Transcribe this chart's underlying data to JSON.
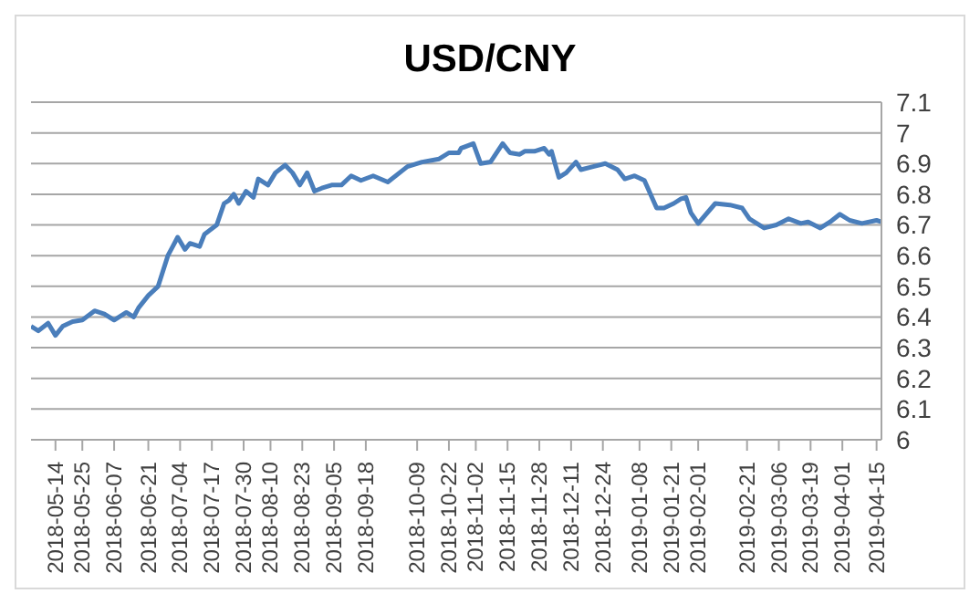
{
  "chart_data": {
    "type": "line",
    "title": "USD/CNY",
    "x": [
      "2018-05-04",
      "2018-05-07",
      "2018-05-11",
      "2018-05-14",
      "2018-05-17",
      "2018-05-21",
      "2018-05-25",
      "2018-05-30",
      "2018-06-03",
      "2018-06-07",
      "2018-06-12",
      "2018-06-15",
      "2018-06-17",
      "2018-06-21",
      "2018-06-25",
      "2018-06-29",
      "2018-07-01",
      "2018-07-03",
      "2018-07-06",
      "2018-07-08",
      "2018-07-12",
      "2018-07-14",
      "2018-07-19",
      "2018-07-22",
      "2018-07-24",
      "2018-07-26",
      "2018-07-28",
      "2018-07-31",
      "2018-08-03",
      "2018-08-05",
      "2018-08-09",
      "2018-08-12",
      "2018-08-16",
      "2018-08-19",
      "2018-08-22",
      "2018-08-25",
      "2018-08-28",
      "2018-08-31",
      "2018-09-04",
      "2018-09-08",
      "2018-09-12",
      "2018-09-16",
      "2018-09-21",
      "2018-09-27",
      "2018-10-05",
      "2018-10-11",
      "2018-10-18",
      "2018-10-22",
      "2018-10-26",
      "2018-10-27",
      "2018-11-01",
      "2018-11-04",
      "2018-11-08",
      "2018-11-13",
      "2018-11-16",
      "2018-11-20",
      "2018-11-22",
      "2018-11-26",
      "2018-11-30",
      "2018-12-02",
      "2018-12-03",
      "2018-12-06",
      "2018-12-09",
      "2018-12-13",
      "2018-12-15",
      "2018-12-20",
      "2018-12-25",
      "2018-12-30",
      "2019-01-02",
      "2019-01-06",
      "2019-01-10",
      "2019-01-15",
      "2019-01-18",
      "2019-01-22",
      "2019-01-25",
      "2019-01-27",
      "2019-01-29",
      "2019-02-01",
      "2019-02-08",
      "2019-02-14",
      "2019-02-19",
      "2019-02-22",
      "2019-02-28",
      "2019-03-05",
      "2019-03-10",
      "2019-03-15",
      "2019-03-18",
      "2019-03-23",
      "2019-03-27",
      "2019-03-31",
      "2019-04-04",
      "2019-04-09",
      "2019-04-15",
      "2019-04-17"
    ],
    "series": [
      {
        "color": "#4a7ebb",
        "values": [
          6.37,
          6.355,
          6.38,
          6.34,
          6.37,
          6.385,
          6.39,
          6.42,
          6.41,
          6.39,
          6.415,
          6.4,
          6.43,
          6.47,
          6.5,
          6.6,
          6.63,
          6.66,
          6.62,
          6.64,
          6.63,
          6.67,
          6.7,
          6.77,
          6.78,
          6.8,
          6.77,
          6.81,
          6.79,
          6.85,
          6.83,
          6.87,
          6.895,
          6.87,
          6.83,
          6.87,
          6.81,
          6.82,
          6.83,
          6.83,
          6.86,
          6.845,
          6.86,
          6.84,
          6.89,
          6.905,
          6.915,
          6.935,
          6.935,
          6.95,
          6.965,
          6.9,
          6.905,
          6.965,
          6.935,
          6.93,
          6.94,
          6.94,
          6.95,
          6.93,
          6.94,
          6.855,
          6.87,
          6.905,
          6.88,
          6.89,
          6.9,
          6.88,
          6.85,
          6.86,
          6.845,
          6.755,
          6.755,
          6.77,
          6.785,
          6.79,
          6.74,
          6.705,
          6.77,
          6.765,
          6.755,
          6.72,
          6.69,
          6.7,
          6.72,
          6.705,
          6.71,
          6.69,
          6.71,
          6.735,
          6.715,
          6.705,
          6.715,
          6.71
        ]
      }
    ],
    "xlim": [
      "2018-05-04",
      "2019-04-17"
    ],
    "xticks": [
      "2018-05-14",
      "2018-05-25",
      "2018-06-07",
      "2018-06-21",
      "2018-07-04",
      "2018-07-17",
      "2018-07-30",
      "2018-08-10",
      "2018-08-23",
      "2018-09-05",
      "2018-09-18",
      "2018-10-09",
      "2018-10-22",
      "2018-11-02",
      "2018-11-15",
      "2018-11-28",
      "2018-12-11",
      "2018-12-24",
      "2019-01-08",
      "2019-01-21",
      "2019-02-01",
      "2019-02-21",
      "2019-03-06",
      "2019-03-19",
      "2019-04-01",
      "2019-04-15"
    ],
    "ylim": [
      6,
      7.1
    ],
    "yticks": [
      6,
      6.1,
      6.2,
      6.3,
      6.4,
      6.5,
      6.6,
      6.7,
      6.8,
      6.9,
      7,
      7.1
    ],
    "grid": "y",
    "legend": false,
    "marker": "none",
    "line_style": "solid"
  }
}
